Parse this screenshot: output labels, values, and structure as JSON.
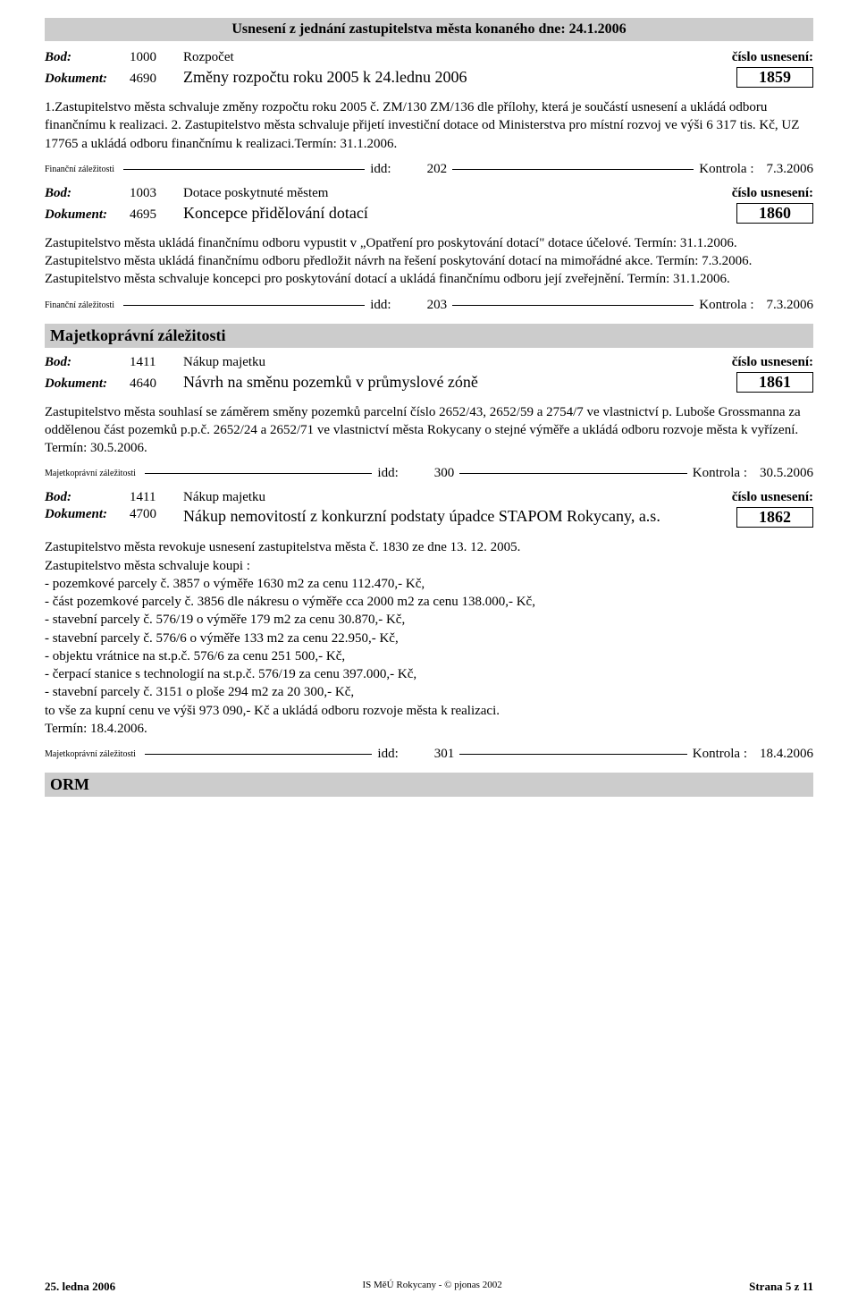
{
  "colors": {
    "bar_bg": "#cccccc",
    "text": "#000000",
    "page_bg": "#ffffff",
    "border": "#000000"
  },
  "header": {
    "title": "Usnesení z  jednání zastupitelstva města konaného dne: 24.1.2006"
  },
  "labels": {
    "bod": "Bod:",
    "dokument": "Dokument:",
    "cislo_usneseni": "číslo usnesení:",
    "idd": "idd:",
    "kontrola": "Kontrola :"
  },
  "items": [
    {
      "bod_num": "1000",
      "bod_title": "Rozpočet",
      "dok_num": "4690",
      "dok_title": "Změny rozpočtu roku 2005 k 24.lednu 2006",
      "res_num": "1859",
      "body": "1.Zastupitelstvo města schvaluje změny rozpočtu roku 2005 č. ZM/130 ZM/136 dle přílohy, která je součástí usnesení a ukládá odboru finančnímu k realizaci. 2. Zastupitelstvo města schvaluje přijetí investiční dotace od Ministerstva pro místní rozvoj ve výši 6 317 tis. Kč, UZ 17765 a ukládá odboru finančnímu k realizaci.Termín: 31.1.2006.",
      "divider_label": "Finanční záležitosti",
      "idd": "202",
      "kontrola": "7.3.2006"
    },
    {
      "bod_num": "1003",
      "bod_title": "Dotace poskytnuté městem",
      "dok_num": "4695",
      "dok_title": "Koncepce přidělování dotací",
      "res_num": "1860",
      "body": "Zastupitelstvo města ukládá finančnímu odboru vypustit v  „Opatření pro poskytování dotací\" dotace účelové. Termín: 31.1.2006.\nZastupitelstvo města ukládá finančnímu odboru předložit návrh na řešení poskytování dotací na mimořádné akce. Termín: 7.3.2006.\nZastupitelstvo města schvaluje koncepci pro poskytování dotací  a ukládá finančnímu odboru její zveřejnění. Termín: 31.1.2006.",
      "divider_label": "Finanční záležitosti",
      "idd": "203",
      "kontrola": "7.3.2006"
    }
  ],
  "section2": {
    "title": "Majetkoprávní záležitosti"
  },
  "items2": [
    {
      "bod_num": "1411",
      "bod_title": "Nákup majetku",
      "dok_num": "4640",
      "dok_title": "Návrh na  směnu  pozemků  v  průmyslové  zóně",
      "res_num": "1861",
      "body": "Zastupitelstvo  města souhlasí se záměrem směny pozemků parcelní číslo 2652/43, 2652/59 a 2754/7 ve vlastnictví p. Luboše Grossmanna za oddělenou část pozemků p.p.č. 2652/24 a 2652/71 ve vlastnictví města Rokycany o stejné výměře a ukládá odboru rozvoje města k vyřízení.  Termín: 30.5.2006.",
      "divider_label": "Majetkoprávní záležitosti",
      "idd": "300",
      "kontrola": "30.5.2006"
    },
    {
      "bod_num": "1411",
      "bod_title": "Nákup majetku",
      "dok_num": "4700",
      "dok_title": "Nákup nemovitostí z konkurzní podstaty úpadce STAPOM Rokycany, a.s.",
      "res_num": "1862",
      "body": "Zastupitelstvo města revokuje usnesení zastupitelstva města č. 1830 ze dne 13. 12. 2005.\nZastupitelstvo města schvaluje  koupi :\n- pozemkové parcely č. 3857 o výměře 1630 m2 za cenu 112.470,- Kč,\n- část pozemkové parcely č. 3856 dle nákresu o výměře cca 2000 m2 za cenu 138.000,- Kč,\n- stavební parcely č. 576/19 o výměře 179 m2  za cenu 30.870,- Kč,\n- stavební parcely č. 576/6 o výměře 133 m2 za  cenu 22.950,- Kč,\n- objektu vrátnice na st.p.č. 576/6 za  cenu 251 500,- Kč,\n- čerpací stanice s technologií  na st.p.č. 576/19 za cenu 397.000,- Kč,\n- stavební parcely č. 3151 o ploše 294 m2 za 20 300,- Kč,\nto vše za kupní cenu ve výši 973 090,- Kč a ukládá odboru rozvoje města k realizaci.\nTermín: 18.4.2006.",
      "divider_label": "Majetkoprávní záležitosti",
      "idd": "301",
      "kontrola": "18.4.2006"
    }
  ],
  "section3": {
    "title": "ORM"
  },
  "footer": {
    "left": "25. ledna 2006",
    "mid": "IS MěÚ Rokycany - © pjonas 2002",
    "right": "Strana 5 z 11"
  }
}
